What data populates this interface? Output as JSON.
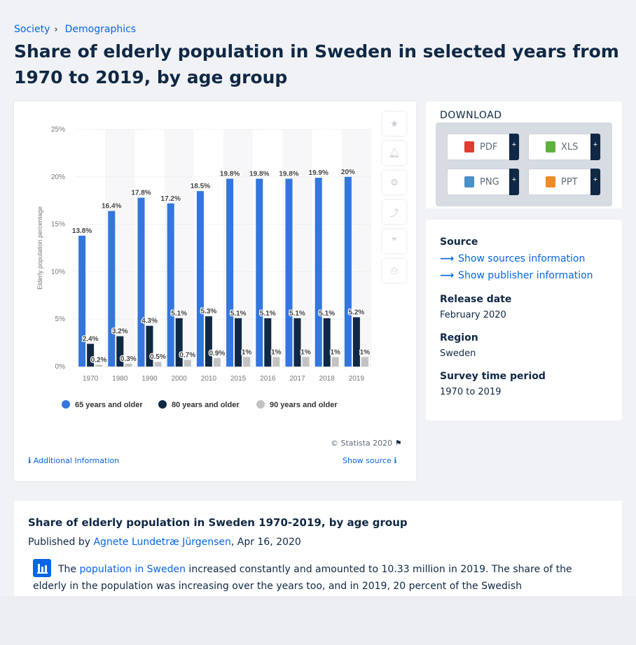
{
  "breadcrumb": {
    "items": [
      "Society",
      "Demographics"
    ]
  },
  "page_title": "Share of elderly population in Sweden in selected years from 1970 to 2019, by age group",
  "colors": {
    "series65": "#3376de",
    "series80": "#0f2845",
    "series90": "#c2c2c2",
    "link": "#0666e5"
  },
  "chart_data": {
    "type": "bar",
    "categories": [
      "1970",
      "1980",
      "1990",
      "2000",
      "2010",
      "2015",
      "2016",
      "2017",
      "2018",
      "2019"
    ],
    "series": [
      {
        "name": "65 years and older",
        "values": [
          13.8,
          16.4,
          17.8,
          17.2,
          18.5,
          19.8,
          19.8,
          19.8,
          19.9,
          20
        ],
        "labels": [
          "13.8%",
          "16.4%",
          "17.8%",
          "17.2%",
          "18.5%",
          "19.8%",
          "19.8%",
          "19.8%",
          "19.9%",
          "20%"
        ]
      },
      {
        "name": "80 years and older",
        "values": [
          2.4,
          3.2,
          4.3,
          5.1,
          5.3,
          5.1,
          5.1,
          5.1,
          5.1,
          5.2
        ],
        "labels": [
          "2.4%",
          "3.2%",
          "4.3%",
          "5.1%",
          "5.3%",
          "5.1%",
          "5.1%",
          "5.1%",
          "5.1%",
          "5.2%"
        ]
      },
      {
        "name": "90 years and older",
        "values": [
          0.2,
          0.3,
          0.5,
          0.7,
          0.9,
          1,
          1,
          1,
          1,
          1
        ],
        "labels": [
          "0.2%",
          "0.3%",
          "0.5%",
          "0.7%",
          "0.9%",
          "1%",
          "1%",
          "1%",
          "1%",
          "1%"
        ]
      }
    ],
    "ylabel": "Elderly population percentage",
    "ylim": [
      0,
      25
    ],
    "yticks": [
      "0%",
      "5%",
      "10%",
      "15%",
      "20%",
      "25%"
    ],
    "grid": true,
    "legend_position": "bottom"
  },
  "chart_footer": {
    "copyright": "© Statista 2020",
    "additional_info": "Additional Information",
    "show_source": "Show source"
  },
  "download": {
    "title": "DOWNLOAD",
    "buttons": [
      "PDF",
      "XLS",
      "PNG",
      "PPT"
    ],
    "plus": "+"
  },
  "info": {
    "source_heading": "Source",
    "show_sources": "Show sources information",
    "show_publisher": "Show publisher information",
    "release_heading": "Release date",
    "release_value": "February 2020",
    "region_heading": "Region",
    "region_value": "Sweden",
    "survey_heading": "Survey time period",
    "survey_value": "1970 to 2019"
  },
  "article": {
    "title": "Share of elderly population in Sweden 1970-2019, by age group",
    "published_prefix": "Published by ",
    "author": "Agnete Lundetræ Jürgensen",
    "date": ", Apr 16, 2020",
    "text_pre": "The ",
    "text_link": "population in Sweden",
    "text_post": " increased constantly and amounted to 10.33 million in 2019. The share of the elderly in the population was increasing over the years too, and in 2019, 20 percent of the Swedish"
  }
}
